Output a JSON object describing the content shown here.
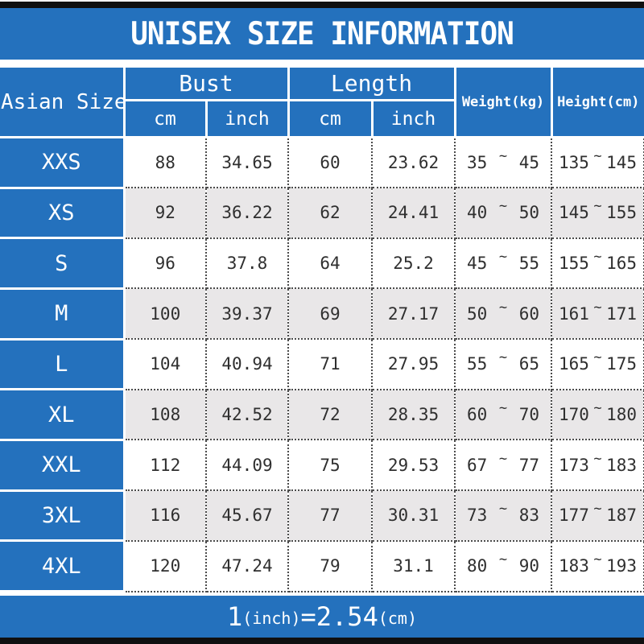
{
  "title": "UNISEX SIZE INFORMATION",
  "colors": {
    "accent": "#2471bd",
    "row-alt": "#e9e7e8",
    "ink": "#2f2f2f",
    "bar": "#101010"
  },
  "table_header": {
    "size_col": "Asian Size",
    "bust_group": "Bust",
    "length_group": "Length",
    "sub_cm": "cm",
    "sub_inch": "inch",
    "weight_col": "Weight(kg)",
    "height_col": "Height(cm)"
  },
  "labels": {
    "tilde": "~"
  },
  "chart_data": {
    "type": "table",
    "title": "UNISEX SIZE INFORMATION",
    "columns": [
      "Asian Size",
      "Bust cm",
      "Bust inch",
      "Length cm",
      "Length inch",
      "Weight(kg)",
      "Height(cm)"
    ],
    "rows": [
      {
        "size": "XXS",
        "bust_cm": "88",
        "bust_inch": "34.65",
        "length_cm": "60",
        "length_inch": "23.62",
        "weight_min": "35",
        "weight_max": "45",
        "height_min": "135",
        "height_max": "145"
      },
      {
        "size": "XS",
        "bust_cm": "92",
        "bust_inch": "36.22",
        "length_cm": "62",
        "length_inch": "24.41",
        "weight_min": "40",
        "weight_max": "50",
        "height_min": "145",
        "height_max": "155"
      },
      {
        "size": "S",
        "bust_cm": "96",
        "bust_inch": "37.8",
        "length_cm": "64",
        "length_inch": "25.2",
        "weight_min": "45",
        "weight_max": "55",
        "height_min": "155",
        "height_max": "165"
      },
      {
        "size": "M",
        "bust_cm": "100",
        "bust_inch": "39.37",
        "length_cm": "69",
        "length_inch": "27.17",
        "weight_min": "50",
        "weight_max": "60",
        "height_min": "161",
        "height_max": "171"
      },
      {
        "size": "L",
        "bust_cm": "104",
        "bust_inch": "40.94",
        "length_cm": "71",
        "length_inch": "27.95",
        "weight_min": "55",
        "weight_max": "65",
        "height_min": "165",
        "height_max": "175"
      },
      {
        "size": "XL",
        "bust_cm": "108",
        "bust_inch": "42.52",
        "length_cm": "72",
        "length_inch": "28.35",
        "weight_min": "60",
        "weight_max": "70",
        "height_min": "170",
        "height_max": "180"
      },
      {
        "size": "XXL",
        "bust_cm": "112",
        "bust_inch": "44.09",
        "length_cm": "75",
        "length_inch": "29.53",
        "weight_min": "67",
        "weight_max": "77",
        "height_min": "173",
        "height_max": "183"
      },
      {
        "size": "3XL",
        "bust_cm": "116",
        "bust_inch": "45.67",
        "length_cm": "77",
        "length_inch": "30.31",
        "weight_min": "73",
        "weight_max": "83",
        "height_min": "177",
        "height_max": "187"
      },
      {
        "size": "4XL",
        "bust_cm": "120",
        "bust_inch": "47.24",
        "length_cm": "79",
        "length_inch": "31.1",
        "weight_min": "80",
        "weight_max": "90",
        "height_min": "183",
        "height_max": "193"
      }
    ]
  },
  "footer": {
    "big1": "1",
    "small1": "(inch)",
    "equals": "=",
    "big2": "2.54",
    "small2": "(cm)"
  }
}
